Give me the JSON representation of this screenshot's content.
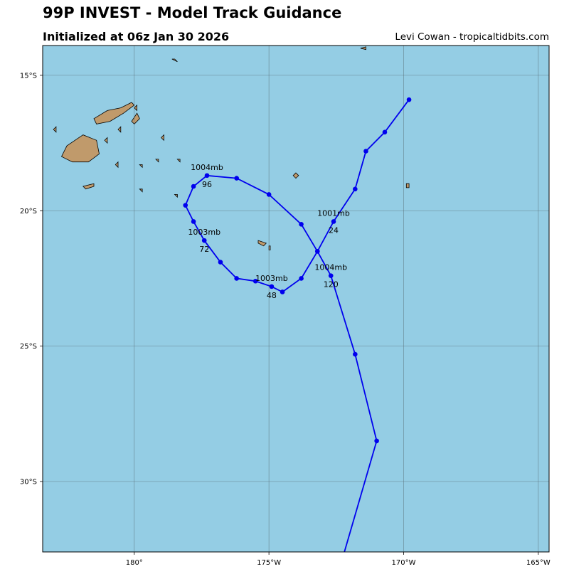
{
  "header": {
    "title": "99P INVEST - Model Track Guidance",
    "subtitle": "Initialized at 06z Jan 30 2026",
    "credit": "Levi Cowan - tropicaltidbits.com"
  },
  "colors": {
    "ocean": "#94cde4",
    "land": "#c09a6b",
    "track": "#0000ee",
    "grid": "#5a6e78",
    "frame": "#000000"
  },
  "chart_data": {
    "type": "line",
    "extent": {
      "lon": [
        -183.4,
        -164.6
      ],
      "lat": [
        -32.6,
        -13.9
      ]
    },
    "x_ticks": [
      {
        "lon": -180,
        "label": "180°"
      },
      {
        "lon": -175,
        "label": "175°W"
      },
      {
        "lon": -170,
        "label": "170°W"
      },
      {
        "lon": -165,
        "label": "165°W"
      }
    ],
    "y_ticks": [
      {
        "lat": -15,
        "label": "15°S"
      },
      {
        "lat": -20,
        "label": "20°S"
      },
      {
        "lat": -25,
        "label": "25°S"
      },
      {
        "lat": -30,
        "label": "30°S"
      }
    ],
    "grid": true,
    "track": [
      {
        "lon": -169.8,
        "lat": -15.9
      },
      {
        "lon": -170.7,
        "lat": -17.1
      },
      {
        "lon": -171.4,
        "lat": -17.8
      },
      {
        "lon": -171.8,
        "lat": -19.2
      },
      {
        "lon": -172.6,
        "lat": -20.4
      },
      {
        "lon": -173.2,
        "lat": -21.5
      },
      {
        "lon": -173.8,
        "lat": -20.5
      },
      {
        "lon": -175.0,
        "lat": -19.4
      },
      {
        "lon": -176.2,
        "lat": -18.8
      },
      {
        "lon": -177.3,
        "lat": -18.7
      },
      {
        "lon": -177.8,
        "lat": -19.1
      },
      {
        "lon": -178.1,
        "lat": -19.8
      },
      {
        "lon": -177.8,
        "lat": -20.4
      },
      {
        "lon": -177.4,
        "lat": -21.1
      },
      {
        "lon": -176.8,
        "lat": -21.9
      },
      {
        "lon": -176.2,
        "lat": -22.5
      },
      {
        "lon": -175.5,
        "lat": -22.6
      },
      {
        "lon": -174.9,
        "lat": -22.8
      },
      {
        "lon": -174.5,
        "lat": -23.0
      },
      {
        "lon": -173.8,
        "lat": -22.5
      },
      {
        "lon": -173.2,
        "lat": -21.5
      },
      {
        "lon": -172.7,
        "lat": -22.4
      },
      {
        "lon": -171.8,
        "lat": -25.3
      },
      {
        "lon": -171.0,
        "lat": -28.5
      },
      {
        "lon": -172.2,
        "lat": -32.6
      }
    ],
    "annotations": [
      {
        "point": 4,
        "pressure": "1001mb",
        "hour": "24"
      },
      {
        "point": 17,
        "pressure": "1003mb",
        "hour": "48"
      },
      {
        "point": 13,
        "pressure": "1003mb",
        "hour": "72"
      },
      {
        "point": 9,
        "pressure": "1004mb",
        "hour": "96"
      },
      {
        "point": 21,
        "pressure": "1004mb",
        "hour": "120"
      }
    ],
    "islands": [
      {
        "name": "Viti Levu",
        "points": [
          [
            -182.5,
            -17.6
          ],
          [
            -181.9,
            -17.2
          ],
          [
            -181.4,
            -17.4
          ],
          [
            -181.3,
            -17.9
          ],
          [
            -181.7,
            -18.2
          ],
          [
            -182.3,
            -18.2
          ],
          [
            -182.7,
            -18.0
          ]
        ]
      },
      {
        "name": "Vanua Levu",
        "points": [
          [
            -181.5,
            -16.6
          ],
          [
            -181.0,
            -16.3
          ],
          [
            -180.5,
            -16.2
          ],
          [
            -180.1,
            -16.0
          ],
          [
            -180.0,
            -16.1
          ],
          [
            -180.4,
            -16.4
          ],
          [
            -180.9,
            -16.7
          ],
          [
            -181.4,
            -16.8
          ]
        ]
      },
      {
        "name": "Taveuni",
        "points": [
          [
            -180.1,
            -16.7
          ],
          [
            -179.9,
            -16.4
          ],
          [
            -179.8,
            -16.6
          ],
          [
            -180.0,
            -16.8
          ]
        ]
      },
      {
        "name": "Kadavu",
        "points": [
          [
            -181.9,
            -19.1
          ],
          [
            -181.5,
            -19.0
          ],
          [
            -181.5,
            -19.1
          ],
          [
            -181.8,
            -19.2
          ]
        ]
      },
      {
        "name": "Tongatapu",
        "points": [
          [
            -175.4,
            -21.1
          ],
          [
            -175.1,
            -21.2
          ],
          [
            -175.2,
            -21.3
          ],
          [
            -175.4,
            -21.2
          ]
        ]
      },
      {
        "name": "Eua",
        "points": [
          [
            -175.0,
            -21.3
          ],
          [
            -174.95,
            -21.3
          ],
          [
            -174.95,
            -21.45
          ],
          [
            -175.0,
            -21.45
          ]
        ]
      },
      {
        "name": "Niue",
        "points": [
          [
            -169.9,
            -19.0
          ],
          [
            -169.8,
            -19.0
          ],
          [
            -169.8,
            -19.15
          ],
          [
            -169.9,
            -19.15
          ]
        ]
      },
      {
        "name": "Savaii",
        "points": [
          [
            -172.8,
            -13.5
          ],
          [
            -172.2,
            -13.6
          ],
          [
            -172.4,
            -13.8
          ],
          [
            -172.8,
            -13.8
          ]
        ]
      },
      {
        "name": "Upolu",
        "points": [
          [
            -171.6,
            -14.0
          ],
          [
            -171.4,
            -13.95
          ],
          [
            -171.4,
            -14.05
          ]
        ]
      },
      {
        "name": "Vava'u",
        "points": [
          [
            -174.0,
            -18.6
          ],
          [
            -173.9,
            -18.7
          ],
          [
            -174.0,
            -18.8
          ],
          [
            -174.1,
            -18.7
          ]
        ]
      },
      {
        "name": "Lau 1",
        "points": [
          [
            -179.0,
            -17.3
          ],
          [
            -178.9,
            -17.2
          ],
          [
            -178.9,
            -17.4
          ]
        ]
      },
      {
        "name": "Lau 2",
        "points": [
          [
            -178.4,
            -18.1
          ],
          [
            -178.3,
            -18.1
          ],
          [
            -178.3,
            -18.2
          ]
        ]
      },
      {
        "name": "Lau 3",
        "points": [
          [
            -179.2,
            -18.1
          ],
          [
            -179.1,
            -18.1
          ],
          [
            -179.1,
            -18.2
          ]
        ]
      },
      {
        "name": "Rotuma-like",
        "points": [
          [
            -183.0,
            -17.0
          ],
          [
            -182.9,
            -16.9
          ],
          [
            -182.9,
            -17.1
          ]
        ]
      },
      {
        "name": "Islet 1",
        "points": [
          [
            -181.1,
            -17.4
          ],
          [
            -181.0,
            -17.3
          ],
          [
            -181.0,
            -17.5
          ]
        ]
      },
      {
        "name": "Islet 2",
        "points": [
          [
            -180.6,
            -17.0
          ],
          [
            -180.5,
            -16.9
          ],
          [
            -180.5,
            -17.1
          ]
        ]
      },
      {
        "name": "Islet 3",
        "points": [
          [
            -180.7,
            -18.3
          ],
          [
            -180.6,
            -18.2
          ],
          [
            -180.6,
            -18.4
          ]
        ]
      },
      {
        "name": "Islet 4",
        "points": [
          [
            -179.8,
            -18.3
          ],
          [
            -179.7,
            -18.3
          ],
          [
            -179.7,
            -18.4
          ]
        ]
      },
      {
        "name": "Islet 5",
        "points": [
          [
            -179.8,
            -19.2
          ],
          [
            -179.7,
            -19.2
          ],
          [
            -179.7,
            -19.3
          ]
        ]
      },
      {
        "name": "Islet 6",
        "points": [
          [
            -178.5,
            -19.4
          ],
          [
            -178.4,
            -19.4
          ],
          [
            -178.4,
            -19.5
          ]
        ]
      },
      {
        "name": "Islet 7",
        "points": [
          [
            -180.0,
            -16.2
          ],
          [
            -179.9,
            -16.1
          ],
          [
            -179.9,
            -16.3
          ]
        ]
      },
      {
        "name": "Islet 8",
        "points": [
          [
            -178.6,
            -14.4
          ],
          [
            -178.4,
            -14.5
          ],
          [
            -178.5,
            -14.4
          ]
        ]
      }
    ]
  }
}
